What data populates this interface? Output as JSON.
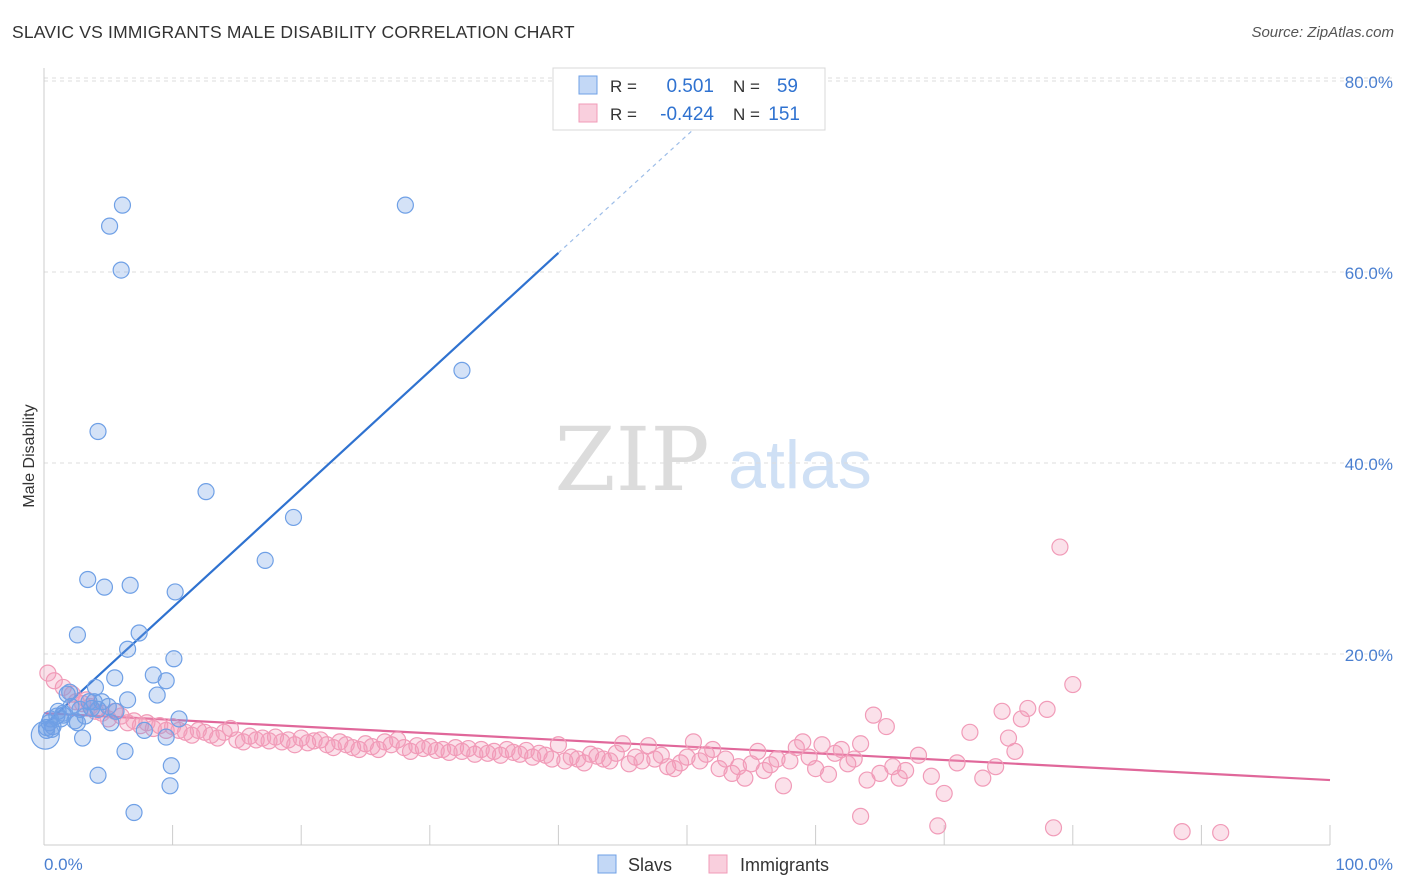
{
  "title": "SLAVIC VS IMMIGRANTS MALE DISABILITY CORRELATION CHART",
  "source": "Source: ZipAtlas.com",
  "watermark": {
    "zip": "ZIP",
    "atlas": "atlas"
  },
  "colors": {
    "slavs": "#6fa0e6",
    "slavs_line": "#2f72d0",
    "immigrants": "#f19bb8",
    "immigrants_line": "#e0679a",
    "axis_text": "#4a7fd0",
    "grid": "#dddddd"
  },
  "legend_top": [
    {
      "series": "slavs",
      "r_label": "R =",
      "r_value": "0.501",
      "n_label": "N =",
      "n_value": "59"
    },
    {
      "series": "immigrants",
      "r_label": "R =",
      "r_value": "-0.424",
      "n_label": "N =",
      "n_value": "151"
    }
  ],
  "legend_bottom": [
    {
      "series": "slavs",
      "label": "Slavs"
    },
    {
      "series": "immigrants",
      "label": "Immigrants"
    }
  ],
  "chart_data": {
    "type": "scatter",
    "title": "SLAVIC VS IMMIGRANTS MALE DISABILITY CORRELATION CHART",
    "xlabel": "",
    "ylabel": "Male Disability",
    "xlim": [
      0,
      100
    ],
    "ylim": [
      0,
      84
    ],
    "x_tick_labels": [
      "0.0%",
      "100.0%"
    ],
    "y_ticks": [
      20,
      40,
      60,
      80
    ],
    "y_tick_labels": [
      "20.0%",
      "40.0%",
      "60.0%",
      "80.0%"
    ],
    "grid": true,
    "legend_position": "top-center",
    "series": [
      {
        "name": "Slavs",
        "r": 0.501,
        "n": 59,
        "trend": {
          "x0": 0.0,
          "y0": 12.5,
          "x1": 40.0,
          "y1": 62.0,
          "dashed_to_x": 53.0,
          "dashed_to_y": 78.0
        },
        "points": [
          [
            0.2,
            12.0
          ],
          [
            0.4,
            12.8
          ],
          [
            0.5,
            13.2
          ],
          [
            0.7,
            12.4
          ],
          [
            1.0,
            13.5
          ],
          [
            1.1,
            14.0
          ],
          [
            1.3,
            13.2
          ],
          [
            1.5,
            13.6
          ],
          [
            1.8,
            15.8
          ],
          [
            2.0,
            16.0
          ],
          [
            2.1,
            14.5
          ],
          [
            2.4,
            13.0
          ],
          [
            2.6,
            12.8
          ],
          [
            2.8,
            14.2
          ],
          [
            3.0,
            11.2
          ],
          [
            3.2,
            13.5
          ],
          [
            3.5,
            15.0
          ],
          [
            3.7,
            14.3
          ],
          [
            4.0,
            16.5
          ],
          [
            4.2,
            14.2
          ],
          [
            4.5,
            15.0
          ],
          [
            5.0,
            14.5
          ],
          [
            5.2,
            12.8
          ],
          [
            5.5,
            17.5
          ],
          [
            5.6,
            14.0
          ],
          [
            6.5,
            15.2
          ],
          [
            3.4,
            27.8
          ],
          [
            4.7,
            27.0
          ],
          [
            6.7,
            27.2
          ],
          [
            2.6,
            22.0
          ],
          [
            7.4,
            22.2
          ],
          [
            6.5,
            20.5
          ],
          [
            10.1,
            19.5
          ],
          [
            8.5,
            17.8
          ],
          [
            9.5,
            17.2
          ],
          [
            8.8,
            15.7
          ],
          [
            9.5,
            11.3
          ],
          [
            10.5,
            13.2
          ],
          [
            9.9,
            8.3
          ],
          [
            9.8,
            6.2
          ],
          [
            4.2,
            7.3
          ],
          [
            7.0,
            3.4
          ],
          [
            6.3,
            9.8
          ],
          [
            4.2,
            43.3
          ],
          [
            5.1,
            64.8
          ],
          [
            6.1,
            67.0
          ],
          [
            6.0,
            60.2
          ],
          [
            12.6,
            37.0
          ],
          [
            10.2,
            26.5
          ],
          [
            17.2,
            29.8
          ],
          [
            19.4,
            34.3
          ],
          [
            28.1,
            67.0
          ],
          [
            32.5,
            49.7
          ],
          [
            0.1,
            11.5
          ],
          [
            0.2,
            12.3
          ],
          [
            0.6,
            12.1
          ],
          [
            1.5,
            13.8
          ],
          [
            3.9,
            15.0
          ],
          [
            7.8,
            12.0
          ]
        ]
      },
      {
        "name": "Immigrants",
        "r": -0.424,
        "n": 151,
        "trend": {
          "x0": 0.0,
          "y0": 13.8,
          "x1": 100.0,
          "y1": 6.8
        },
        "points": [
          [
            0.3,
            18.0
          ],
          [
            0.8,
            17.2
          ],
          [
            1.5,
            16.5
          ],
          [
            2.2,
            15.8
          ],
          [
            2.5,
            15.0
          ],
          [
            3.0,
            14.8
          ],
          [
            3.3,
            15.2
          ],
          [
            3.6,
            14.5
          ],
          [
            4.0,
            14.0
          ],
          [
            4.5,
            13.8
          ],
          [
            5.0,
            13.2
          ],
          [
            5.5,
            14.0
          ],
          [
            6.0,
            13.5
          ],
          [
            6.5,
            12.8
          ],
          [
            7.0,
            13.0
          ],
          [
            7.5,
            12.5
          ],
          [
            8.0,
            12.8
          ],
          [
            8.5,
            12.2
          ],
          [
            9.0,
            12.5
          ],
          [
            9.5,
            12.0
          ],
          [
            10.0,
            12.4
          ],
          [
            10.5,
            12.0
          ],
          [
            11.0,
            11.8
          ],
          [
            11.5,
            11.5
          ],
          [
            12.0,
            12.0
          ],
          [
            12.5,
            11.8
          ],
          [
            13.0,
            11.5
          ],
          [
            13.5,
            11.2
          ],
          [
            14.0,
            11.8
          ],
          [
            14.5,
            12.2
          ],
          [
            15.0,
            11.0
          ],
          [
            15.5,
            10.8
          ],
          [
            16.0,
            11.4
          ],
          [
            16.5,
            11.0
          ],
          [
            17.0,
            11.2
          ],
          [
            17.5,
            10.9
          ],
          [
            18.0,
            11.3
          ],
          [
            18.5,
            10.8
          ],
          [
            19.0,
            11.0
          ],
          [
            19.5,
            10.5
          ],
          [
            20.0,
            11.2
          ],
          [
            20.5,
            10.7
          ],
          [
            21.0,
            10.9
          ],
          [
            21.5,
            11.0
          ],
          [
            22.0,
            10.5
          ],
          [
            22.5,
            10.2
          ],
          [
            23.0,
            10.8
          ],
          [
            23.5,
            10.5
          ],
          [
            24.0,
            10.2
          ],
          [
            24.5,
            10.0
          ],
          [
            25.0,
            10.6
          ],
          [
            25.5,
            10.3
          ],
          [
            26.0,
            10.0
          ],
          [
            26.5,
            10.8
          ],
          [
            27.0,
            10.5
          ],
          [
            27.5,
            11.0
          ],
          [
            28.0,
            10.2
          ],
          [
            28.5,
            9.8
          ],
          [
            29.0,
            10.4
          ],
          [
            29.5,
            10.1
          ],
          [
            30.0,
            10.3
          ],
          [
            30.5,
            9.9
          ],
          [
            31.0,
            10.0
          ],
          [
            31.5,
            9.7
          ],
          [
            32.0,
            10.2
          ],
          [
            32.5,
            9.8
          ],
          [
            33.0,
            10.1
          ],
          [
            33.5,
            9.5
          ],
          [
            34.0,
            10.0
          ],
          [
            34.5,
            9.6
          ],
          [
            35.0,
            9.8
          ],
          [
            35.5,
            9.4
          ],
          [
            36.0,
            10.0
          ],
          [
            36.5,
            9.7
          ],
          [
            37.0,
            9.5
          ],
          [
            37.5,
            9.9
          ],
          [
            38.0,
            9.2
          ],
          [
            38.5,
            9.6
          ],
          [
            39.0,
            9.4
          ],
          [
            39.5,
            9.0
          ],
          [
            40.0,
            10.5
          ],
          [
            40.5,
            8.8
          ],
          [
            41.0,
            9.2
          ],
          [
            41.5,
            9.0
          ],
          [
            42.0,
            8.6
          ],
          [
            42.5,
            9.5
          ],
          [
            43.0,
            9.3
          ],
          [
            43.5,
            9.0
          ],
          [
            44.0,
            8.8
          ],
          [
            44.5,
            9.6
          ],
          [
            45.0,
            10.6
          ],
          [
            45.5,
            8.5
          ],
          [
            46.0,
            9.2
          ],
          [
            46.5,
            8.8
          ],
          [
            47.0,
            10.4
          ],
          [
            47.5,
            9.0
          ],
          [
            48.0,
            9.4
          ],
          [
            48.5,
            8.2
          ],
          [
            49.0,
            8.0
          ],
          [
            49.5,
            8.6
          ],
          [
            50.0,
            9.2
          ],
          [
            50.5,
            10.8
          ],
          [
            51.0,
            8.8
          ],
          [
            51.5,
            9.5
          ],
          [
            52.0,
            10.0
          ],
          [
            52.5,
            8.0
          ],
          [
            53.0,
            9.0
          ],
          [
            53.5,
            7.5
          ],
          [
            54.0,
            8.2
          ],
          [
            54.5,
            7.0
          ],
          [
            55.0,
            8.5
          ],
          [
            55.5,
            9.8
          ],
          [
            56.0,
            7.8
          ],
          [
            56.5,
            8.4
          ],
          [
            57.0,
            9.0
          ],
          [
            57.5,
            6.2
          ],
          [
            58.0,
            8.8
          ],
          [
            58.5,
            10.2
          ],
          [
            59.0,
            10.8
          ],
          [
            59.5,
            9.2
          ],
          [
            60.0,
            8.0
          ],
          [
            60.5,
            10.5
          ],
          [
            61.0,
            7.4
          ],
          [
            61.5,
            9.6
          ],
          [
            62.0,
            10.0
          ],
          [
            62.5,
            8.5
          ],
          [
            63.0,
            9.0
          ],
          [
            63.5,
            10.6
          ],
          [
            64.0,
            6.8
          ],
          [
            64.5,
            13.6
          ],
          [
            65.0,
            7.5
          ],
          [
            65.5,
            12.4
          ],
          [
            66.0,
            8.2
          ],
          [
            66.5,
            7.0
          ],
          [
            67.0,
            7.8
          ],
          [
            68.0,
            9.4
          ],
          [
            69.0,
            7.2
          ],
          [
            70.0,
            5.4
          ],
          [
            71.0,
            8.6
          ],
          [
            72.0,
            11.8
          ],
          [
            73.0,
            7.0
          ],
          [
            74.0,
            8.2
          ],
          [
            74.5,
            14.0
          ],
          [
            75.0,
            11.2
          ],
          [
            75.5,
            9.8
          ],
          [
            76.0,
            13.2
          ],
          [
            76.5,
            14.3
          ],
          [
            78.0,
            14.2
          ],
          [
            79.0,
            31.2
          ],
          [
            80.0,
            16.8
          ],
          [
            63.5,
            3.0
          ],
          [
            69.5,
            2.0
          ],
          [
            78.5,
            1.8
          ],
          [
            88.5,
            1.4
          ],
          [
            91.5,
            1.3
          ]
        ]
      }
    ]
  }
}
